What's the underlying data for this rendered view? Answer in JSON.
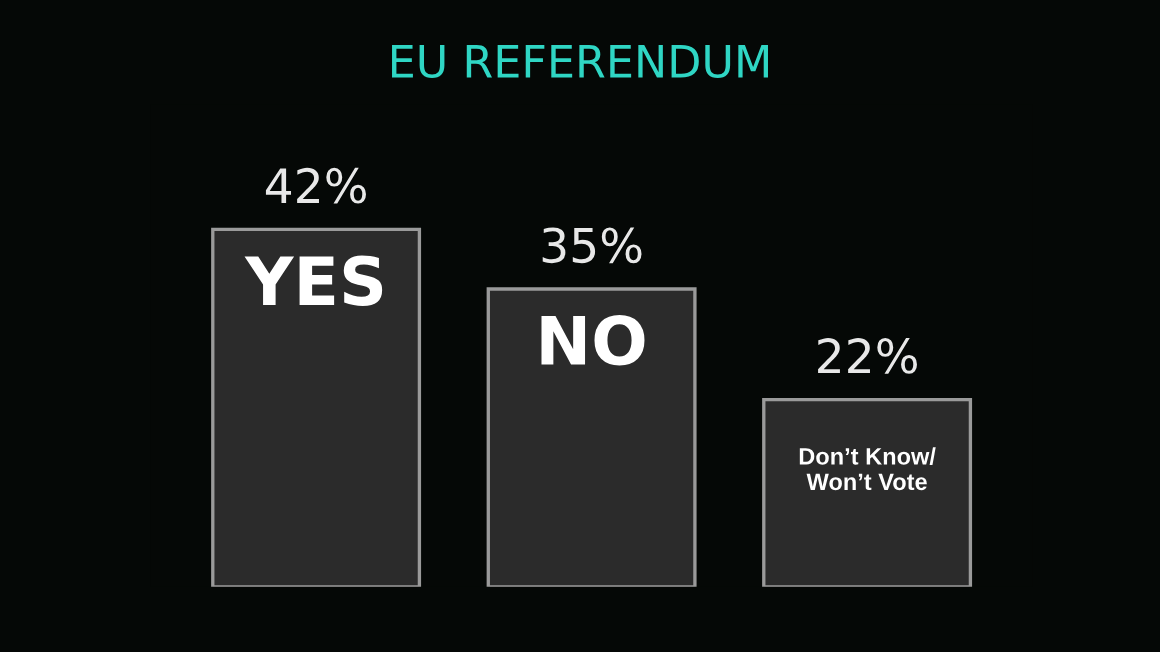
{
  "chart_data": {
    "type": "bar",
    "title": "EU REFERENDUM",
    "categories": [
      "YES",
      "NO",
      "Don’t Know/\nWon’t Vote"
    ],
    "values": [
      42,
      35,
      22
    ],
    "value_labels": [
      "42%",
      "35%",
      "22%"
    ],
    "color": "#2b2b2b"
  }
}
